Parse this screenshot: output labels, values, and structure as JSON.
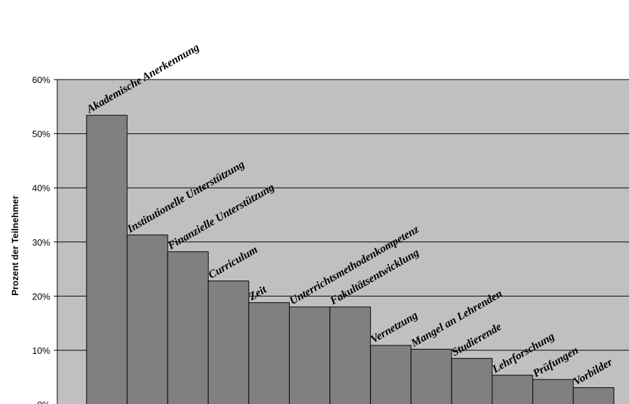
{
  "chart_data": {
    "type": "bar",
    "ylabel": "Prozent der Teilnehmer",
    "ylim": [
      0,
      60
    ],
    "ytick_step": 10,
    "ytick_suffix": "%",
    "grid": true,
    "legend": "none",
    "categories": [
      "Akademische Anerkennung",
      "Institutionelle Unterstützung",
      "Finanzielle Unterstützung",
      "Curriculum",
      "Zeit",
      "Unterrichtsmethodenkompetenz",
      "Fakultätsentwicklung",
      "Vernetzung",
      "Mangel an Lehrenden",
      "Studierende",
      "Lehrforschung",
      "Prüfungen",
      "Vorbilder"
    ],
    "values": [
      53.4,
      31.3,
      28.2,
      22.8,
      18.8,
      18.0,
      18.0,
      10.9,
      10.2,
      8.5,
      5.4,
      4.6,
      3.1
    ],
    "colors": {
      "plot_background": "#c0c0c0",
      "bar_fill": "#808080",
      "bar_stroke": "#000000",
      "gridline": "#000000"
    }
  }
}
